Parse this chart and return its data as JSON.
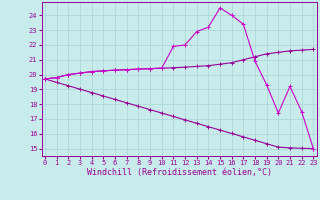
{
  "background_color": "#c8ecec",
  "grid_color": "#b0d8d8",
  "line_color1": "#990099",
  "line_color2": "#cc00cc",
  "x_ticks": [
    0,
    1,
    2,
    3,
    4,
    5,
    6,
    7,
    8,
    9,
    10,
    11,
    12,
    13,
    14,
    15,
    16,
    17,
    18,
    19,
    20,
    21,
    22,
    23
  ],
  "y_ticks": [
    15,
    16,
    17,
    18,
    19,
    20,
    21,
    22,
    23,
    24
  ],
  "xlabel": "Windchill (Refroidissement éolien,°C)",
  "xlim": [
    -0.3,
    23.3
  ],
  "ylim": [
    14.5,
    24.9
  ],
  "series1_x": [
    0,
    1,
    2,
    3,
    4,
    5,
    6,
    7,
    8,
    9,
    10,
    11,
    12,
    13,
    14,
    15,
    16,
    17,
    18,
    19,
    20,
    21,
    22,
    23
  ],
  "series1_y": [
    19.7,
    19.8,
    20.0,
    20.1,
    20.2,
    20.25,
    20.3,
    20.33,
    20.37,
    20.4,
    20.43,
    20.46,
    20.5,
    20.55,
    20.6,
    20.7,
    20.8,
    21.0,
    21.2,
    21.4,
    21.5,
    21.6,
    21.65,
    21.7
  ],
  "series2_x": [
    0,
    1,
    2,
    3,
    4,
    5,
    6,
    7,
    8,
    9,
    10,
    11,
    12,
    13,
    14,
    15,
    16,
    17,
    18,
    19,
    20,
    21,
    22,
    23
  ],
  "series2_y": [
    19.7,
    19.8,
    20.0,
    20.1,
    20.2,
    20.25,
    20.3,
    20.33,
    20.37,
    20.4,
    20.43,
    21.9,
    22.0,
    22.9,
    23.2,
    24.5,
    24.0,
    23.4,
    20.9,
    19.3,
    17.4,
    19.2,
    17.5,
    15.0
  ],
  "series3_x": [
    0,
    1,
    2,
    3,
    4,
    5,
    6,
    7,
    8,
    9,
    10,
    11,
    12,
    13,
    14,
    15,
    16,
    17,
    18,
    19,
    20,
    21,
    22,
    23
  ],
  "series3_y": [
    19.7,
    19.47,
    19.24,
    19.01,
    18.78,
    18.55,
    18.32,
    18.09,
    17.86,
    17.63,
    17.4,
    17.17,
    16.94,
    16.71,
    16.48,
    16.25,
    16.02,
    15.79,
    15.56,
    15.33,
    15.1,
    15.05,
    15.02,
    15.0
  ],
  "tick_fontsize": 5.0,
  "axis_fontsize": 6.0,
  "lw": 0.8,
  "ms": 2.2
}
